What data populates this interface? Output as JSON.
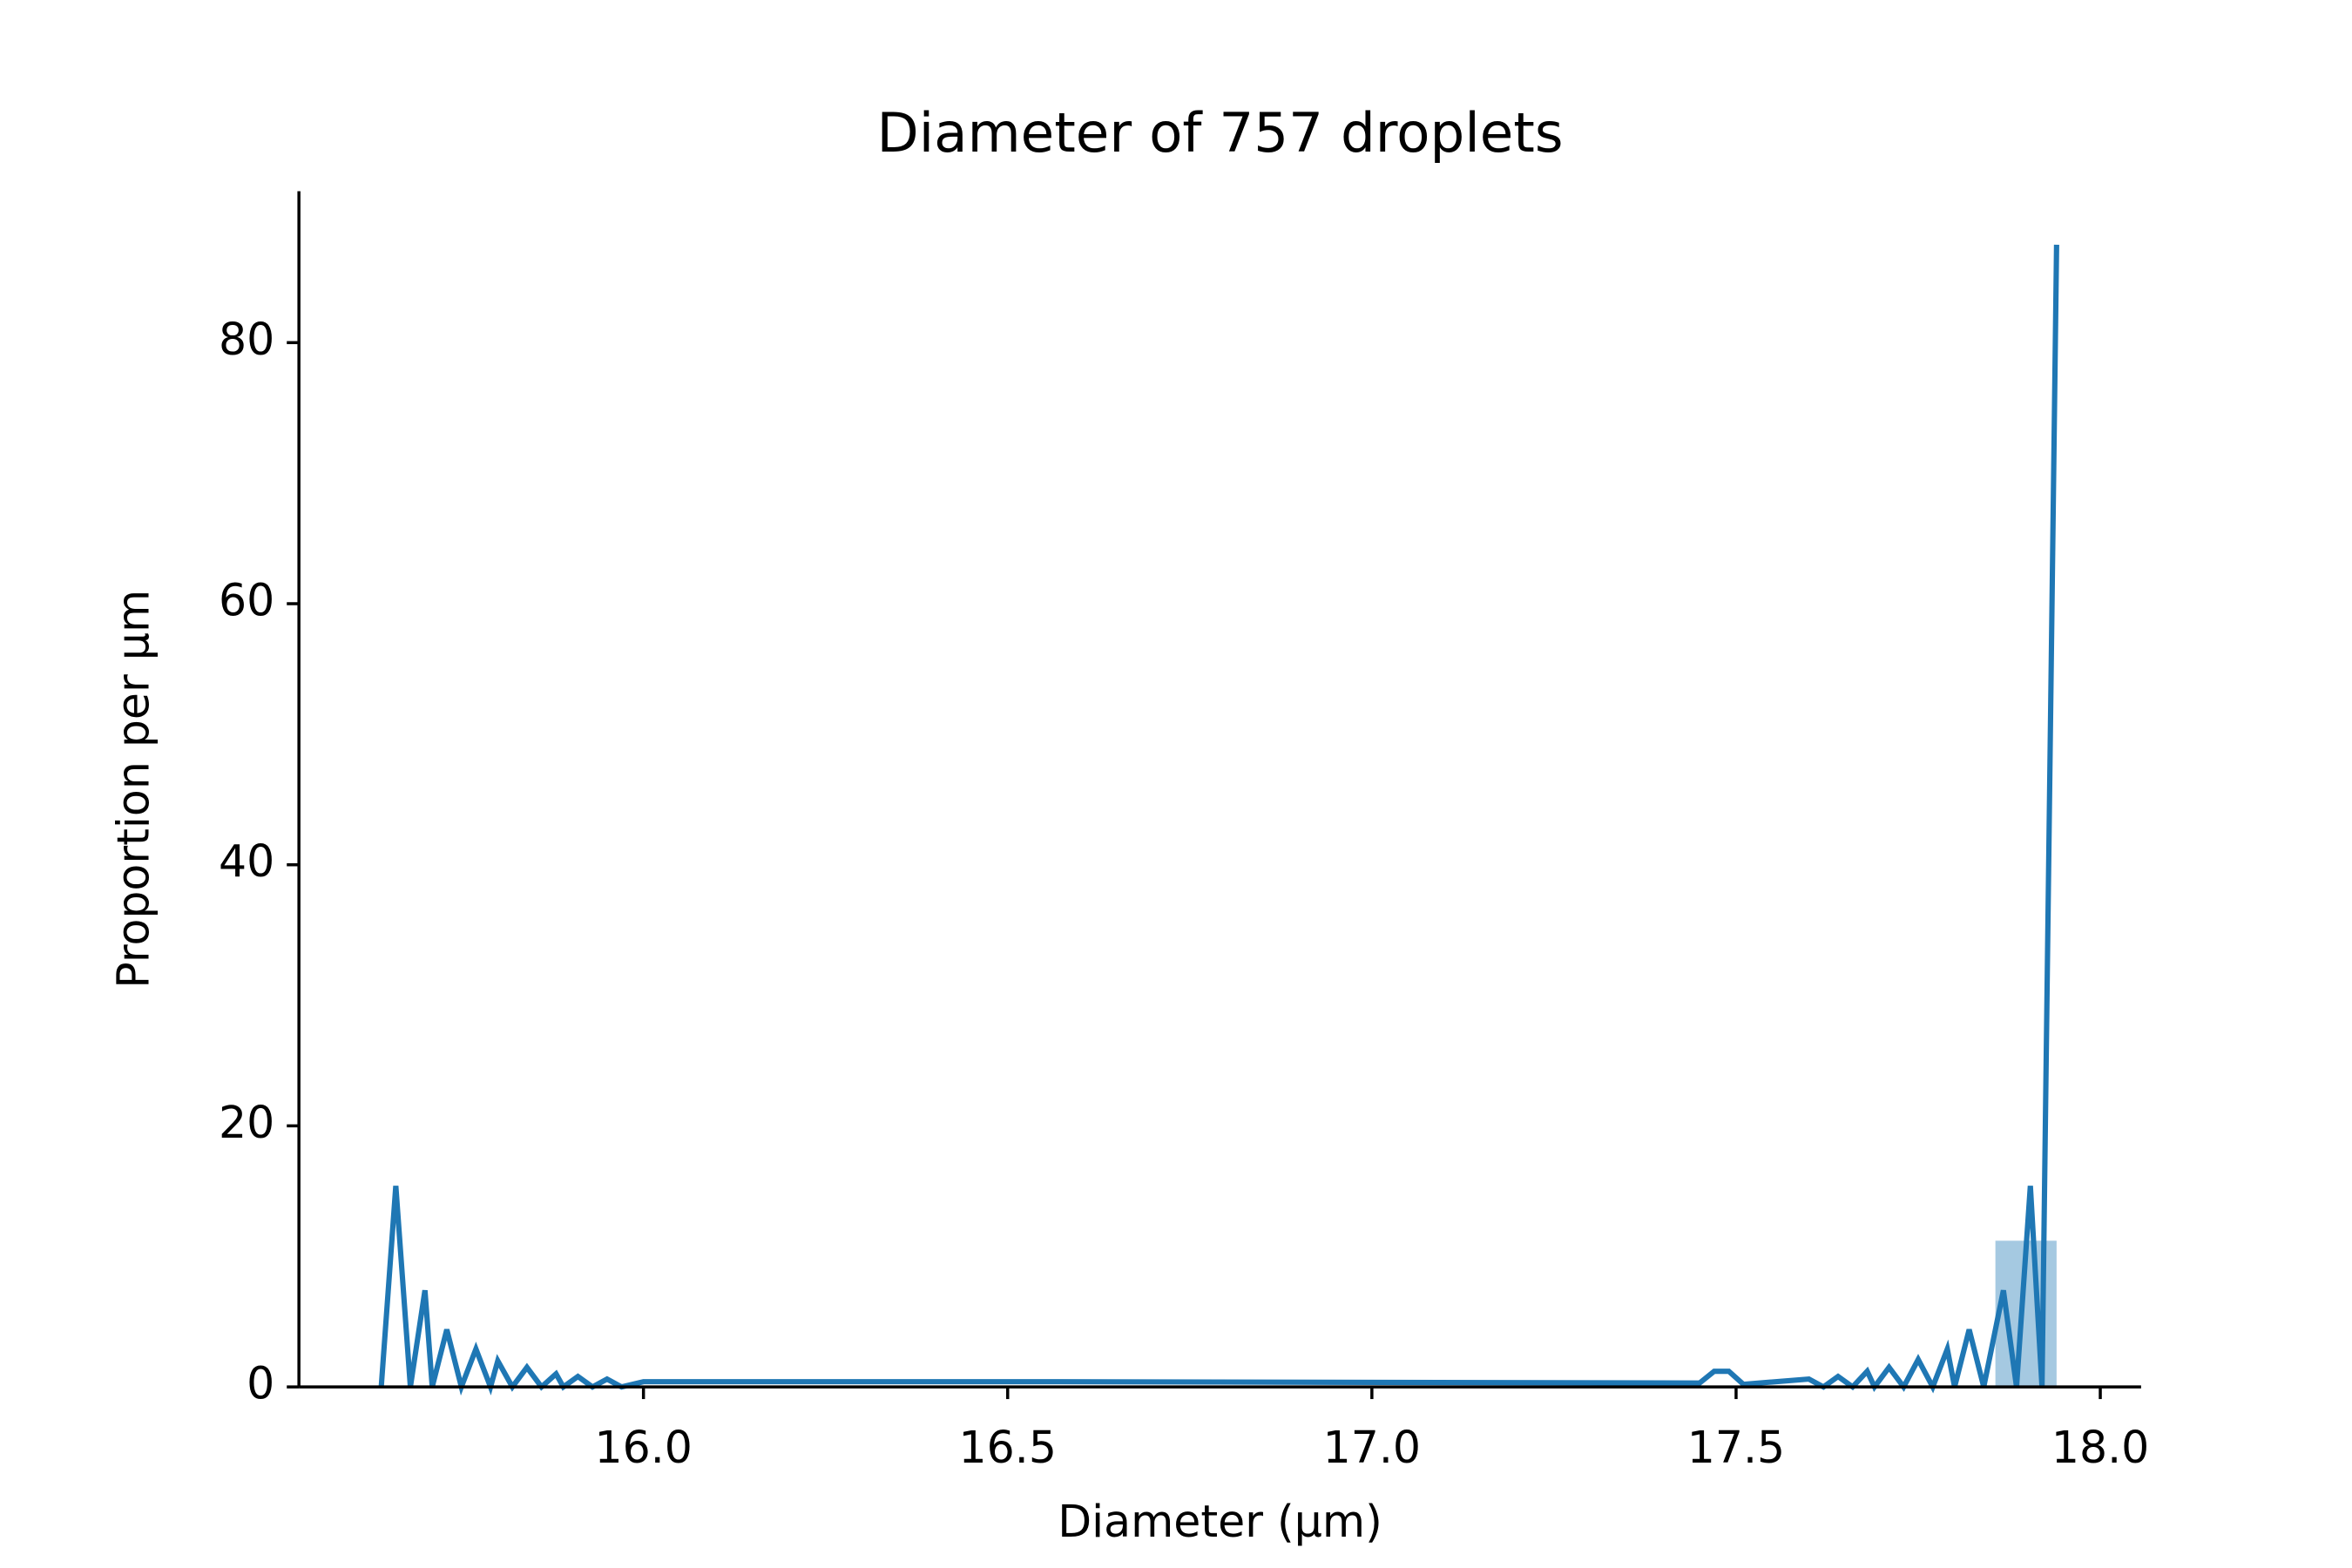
{
  "chart_data": {
    "type": "histogram",
    "title": "Diameter of 757 droplets",
    "xlabel": "Diameter (µm)",
    "ylabel": "Proportion per µm",
    "bins": [
      17.856,
      17.94
    ],
    "counts": [
      11.2
    ],
    "bar_color": "#1f77b4",
    "line": {
      "color": "#1f77b4",
      "x": [
        15.64,
        15.66,
        15.68,
        15.7,
        15.71,
        15.73,
        15.75,
        15.77,
        15.79,
        15.8,
        15.82,
        15.84,
        15.86,
        15.88,
        15.89,
        15.91,
        15.93,
        15.95,
        15.97,
        16.0,
        16.57,
        17.45,
        17.47,
        17.49,
        17.51,
        17.6,
        17.62,
        17.64,
        17.66,
        17.68,
        17.69,
        17.71,
        17.73,
        17.75,
        17.77,
        17.79,
        17.8,
        17.82,
        17.84,
        17.867,
        17.885,
        17.904,
        17.92,
        17.94
      ],
      "y": [
        0,
        15.4,
        0,
        7.4,
        0,
        4.4,
        0,
        2.9,
        0,
        2.0,
        0,
        1.5,
        0,
        1.0,
        0,
        0.8,
        0,
        0.6,
        0,
        0.4,
        0.4,
        0.3,
        1.2,
        1.2,
        0.2,
        0.6,
        0,
        0.8,
        0,
        1.2,
        0,
        1.5,
        0,
        2.1,
        0,
        2.9,
        0,
        4.4,
        0,
        7.4,
        0,
        15.4,
        0,
        87.5
      ]
    },
    "xlim": [
      15.527,
      18.056
    ],
    "ylim": [
      0,
      91.6
    ],
    "xticks": [
      {
        "value": 16,
        "label": "16.0"
      },
      {
        "value": 16.5,
        "label": "16.5"
      },
      {
        "value": 17,
        "label": "17.0"
      },
      {
        "value": 17.5,
        "label": "17.5"
      },
      {
        "value": 18,
        "label": "18.0"
      }
    ],
    "yticks": [
      0,
      20,
      40,
      60,
      80
    ]
  }
}
